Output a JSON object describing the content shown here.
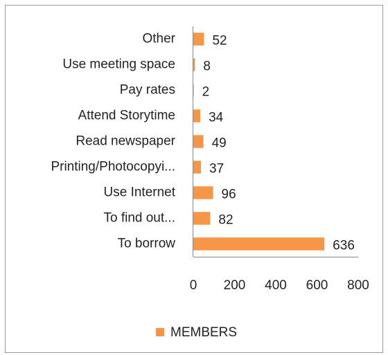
{
  "chart_data": {
    "type": "hbar",
    "categories": [
      "Other",
      "Use meeting space",
      "Pay rates",
      "Attend Storytime",
      "Read newspaper",
      "Printing/Photocopyi...",
      "Use Internet",
      "To find out...",
      "To borrow"
    ],
    "series": [
      {
        "name": "MEMBERS",
        "color": "#f79646",
        "values": [
          52,
          8,
          2,
          34,
          49,
          37,
          96,
          82,
          636
        ]
      }
    ],
    "xlim": [
      0,
      800
    ],
    "xticks": [
      0,
      200,
      400,
      600,
      800
    ],
    "grid": false,
    "legend": "bottom"
  }
}
